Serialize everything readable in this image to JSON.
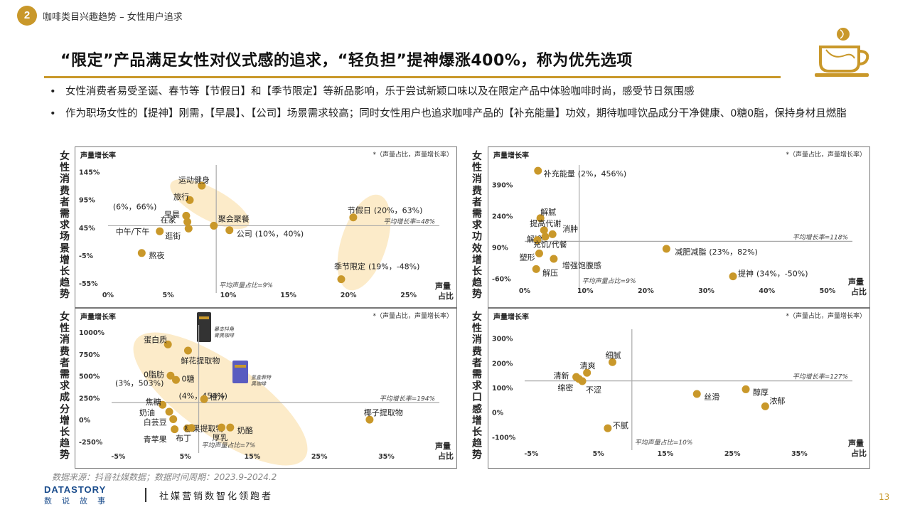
{
  "header": {
    "section_number": "2",
    "section_title": "咖啡类目兴趣趋势 – 女性用户追求",
    "headline": "“限定”产品满足女性对仪式感的追求，“轻负担”提神爆涨400%，称为优先选项"
  },
  "bullets": [
    "女性消费者易受圣诞、春节等【节假日】和【季节限定】等新品影响，乐于尝试新颖口味以及在限定产品中体验咖啡时尚，感受节日氛围感",
    "作为职场女性的【提神】刚需，【早晨】、【公司】场景需求较高；同时女性用户也追求咖啡产品的【补充能量】功效，期待咖啡饮品成分干净健康、0糖0脂，保持身材且燃脂"
  ],
  "colors": {
    "accent": "#c9982a",
    "highlight": "#fbe7c0",
    "axis": "#aaaaaa"
  },
  "chart_data": [
    {
      "type": "scatter",
      "side_label": "女性消费者需求场景增长趋势",
      "ylabel": "声量增长率",
      "xlabel": "声量占比",
      "note": "*（声量占比，声量增长率）",
      "x_ticks": [
        "0%",
        "5%",
        "10%",
        "15%",
        "20%",
        "25%"
      ],
      "x_tick_values": [
        0,
        5,
        10,
        15,
        20,
        25
      ],
      "y_ticks": [
        "145%",
        "95%",
        "45%",
        "-5%",
        "-55%"
      ],
      "y_tick_values": [
        145,
        95,
        45,
        -5,
        -55
      ],
      "xlim": [
        0,
        26.5
      ],
      "ylim": [
        -60,
        152
      ],
      "avg_x": 9,
      "avg_y": 48,
      "avg_x_label": "平均声量占比=9%",
      "avg_y_label": "平均增长率=48%",
      "points": [
        {
          "label": "运动健身",
          "x": 7.8,
          "y": 120
        },
        {
          "label": "旅行",
          "x": 6.8,
          "y": 94
        },
        {
          "label": "早晨",
          "x": 6.5,
          "y": 66,
          "value": "(6%，66%)"
        },
        {
          "label": "在家",
          "x": 6.6,
          "y": 55
        },
        {
          "label": "逛街",
          "x": 6.7,
          "y": 43
        },
        {
          "label": "中午/下午",
          "x": 4.3,
          "y": 38
        },
        {
          "label": "熬夜",
          "x": 2.8,
          "y": -1
        },
        {
          "label": "聚会聚餐",
          "x": 8.8,
          "y": 48
        },
        {
          "label": "公司",
          "x": 10.1,
          "y": 40,
          "value": "(10%，40%)"
        },
        {
          "label": "节假日",
          "x": 20.4,
          "y": 63,
          "value": "(20%，63%)"
        },
        {
          "label": "季节限定",
          "x": 19.4,
          "y": -48,
          "value": "(19%，-48%)"
        }
      ]
    },
    {
      "type": "scatter",
      "side_label": "女性消费者需求功效增长趋势",
      "ylabel": "声量增长率",
      "xlabel": "声量占比",
      "note": "*（声量占比，声量增长率）",
      "x_ticks": [
        "0%",
        "10%",
        "20%",
        "30%",
        "40%",
        "50%"
      ],
      "x_tick_values": [
        0,
        10,
        20,
        30,
        40,
        50
      ],
      "y_ticks": [
        "390%",
        "240%",
        "90%",
        "-60%"
      ],
      "y_tick_values": [
        390,
        240,
        90,
        -60
      ],
      "xlim": [
        0,
        52
      ],
      "ylim": [
        -75,
        470
      ],
      "avg_x": 9,
      "avg_y": 118,
      "avg_x_label": "平均声量占比=9%",
      "avg_y_label": "平均增长率=118%",
      "points": [
        {
          "label": "补充能量",
          "x": 2.2,
          "y": 456,
          "value": "(2%，456%)"
        },
        {
          "label": "解腻",
          "x": 2.6,
          "y": 229
        },
        {
          "label": "提高代谢",
          "x": 3.2,
          "y": 171
        },
        {
          "label": "消肿",
          "x": 4.6,
          "y": 152
        },
        {
          "label": "解馋",
          "x": 3.4,
          "y": 140
        },
        {
          "label": "充饥/代餐",
          "x": 2.1,
          "y": 124
        },
        {
          "label": "塑形",
          "x": 2.4,
          "y": 60
        },
        {
          "label": "增强饱腹感",
          "x": 4.8,
          "y": 34
        },
        {
          "label": "解压",
          "x": 1.9,
          "y": -15
        },
        {
          "label": "减肥减脂",
          "x": 23.4,
          "y": 82,
          "value": "(23%，82%)"
        },
        {
          "label": "提神",
          "x": 34.4,
          "y": -50,
          "value": "(34%，-50%)"
        }
      ]
    },
    {
      "type": "scatter",
      "side_label": "女性消费者需求成分增长趋势",
      "ylabel": "声量增长率",
      "xlabel": "声量占比",
      "note": "*（声量占比，声量增长率）",
      "x_ticks": [
        "-5%",
        "5%",
        "15%",
        "25%",
        "35%"
      ],
      "x_tick_values": [
        -5,
        5,
        15,
        25,
        35
      ],
      "y_ticks": [
        "1000%",
        "750%",
        "500%",
        "250%",
        "0%",
        "-250%"
      ],
      "y_tick_values": [
        1000,
        750,
        500,
        250,
        0,
        -250
      ],
      "xlim": [
        -6,
        41
      ],
      "ylim": [
        -300,
        1050
      ],
      "avg_x": 7,
      "avg_y": 194,
      "avg_x_label": "平均声量占比=7%",
      "avg_y_label": "平均增长率=194%",
      "product_labels": [
        "暴击抖角膏黑咖啡",
        "氢盒菲特黑咖啡"
      ],
      "points": [
        {
          "label": "蛋白质",
          "x": 2.4,
          "y": 860
        },
        {
          "label": "鲜花提取物",
          "x": 5.4,
          "y": 790
        },
        {
          "label": "0脂肪",
          "x": 2.8,
          "y": 503,
          "value": "(3%，503%)"
        },
        {
          "label": "0糖",
          "x": 3.6,
          "y": 454,
          "value": "(4%，454%)"
        },
        {
          "label": "橙汁",
          "x": 7.8,
          "y": 235
        },
        {
          "label": "焦糖",
          "x": 1.6,
          "y": 170
        },
        {
          "label": "奶油",
          "x": 2.6,
          "y": 90
        },
        {
          "label": "白芸豆",
          "x": 3.2,
          "y": 5
        },
        {
          "label": "青苹果",
          "x": 3.4,
          "y": -110
        },
        {
          "label": "榛果提取物",
          "x": 5.3,
          "y": -100
        },
        {
          "label": "布丁",
          "x": 5.9,
          "y": -95
        },
        {
          "label": "厚乳",
          "x": 10.4,
          "y": -90
        },
        {
          "label": "奶酪",
          "x": 11.7,
          "y": -90
        },
        {
          "label": "椰子提取物",
          "x": 32.5,
          "y": 0
        }
      ]
    },
    {
      "type": "scatter",
      "side_label": "女性消费者需求口感增长趋势",
      "ylabel": "声量增长率",
      "xlabel": "声量占比",
      "note": "*（声量占比，声量增长率）",
      "x_ticks": [
        "-5%",
        "5%",
        "15%",
        "25%",
        "35%"
      ],
      "x_tick_values": [
        -5,
        5,
        15,
        25,
        35
      ],
      "y_ticks": [
        "300%",
        "200%",
        "100%",
        "0%",
        "-100%"
      ],
      "y_tick_values": [
        300,
        200,
        100,
        0,
        -100
      ],
      "xlim": [
        -6,
        41
      ],
      "ylim": [
        -125,
        325
      ],
      "avg_x": 10,
      "avg_y": 127,
      "avg_x_label": "平均声量占比=10%",
      "avg_y_label": "平均增长率=127%",
      "points": [
        {
          "label": "细腻",
          "x": 7.1,
          "y": 203
        },
        {
          "label": "清爽",
          "x": 3.3,
          "y": 160
        },
        {
          "label": "清新",
          "x": 1.7,
          "y": 143
        },
        {
          "label": "绵密",
          "x": 2.1,
          "y": 135
        },
        {
          "label": "不涩",
          "x": 2.6,
          "y": 126
        },
        {
          "label": "丝滑",
          "x": 19.7,
          "y": 74
        },
        {
          "label": "醇厚",
          "x": 27.0,
          "y": 93
        },
        {
          "label": "浓郁",
          "x": 29.9,
          "y": 24
        },
        {
          "label": "不腻",
          "x": 6.4,
          "y": -65
        }
      ]
    }
  ],
  "footer": {
    "source": "数据来源：抖音社媒数据；数据时间周期：2023.9-2024.2",
    "logo_text": "DATASTORY",
    "logo_cn": "数说故事",
    "slogan": "社媒营销数智化领跑者",
    "page_number": "13"
  }
}
